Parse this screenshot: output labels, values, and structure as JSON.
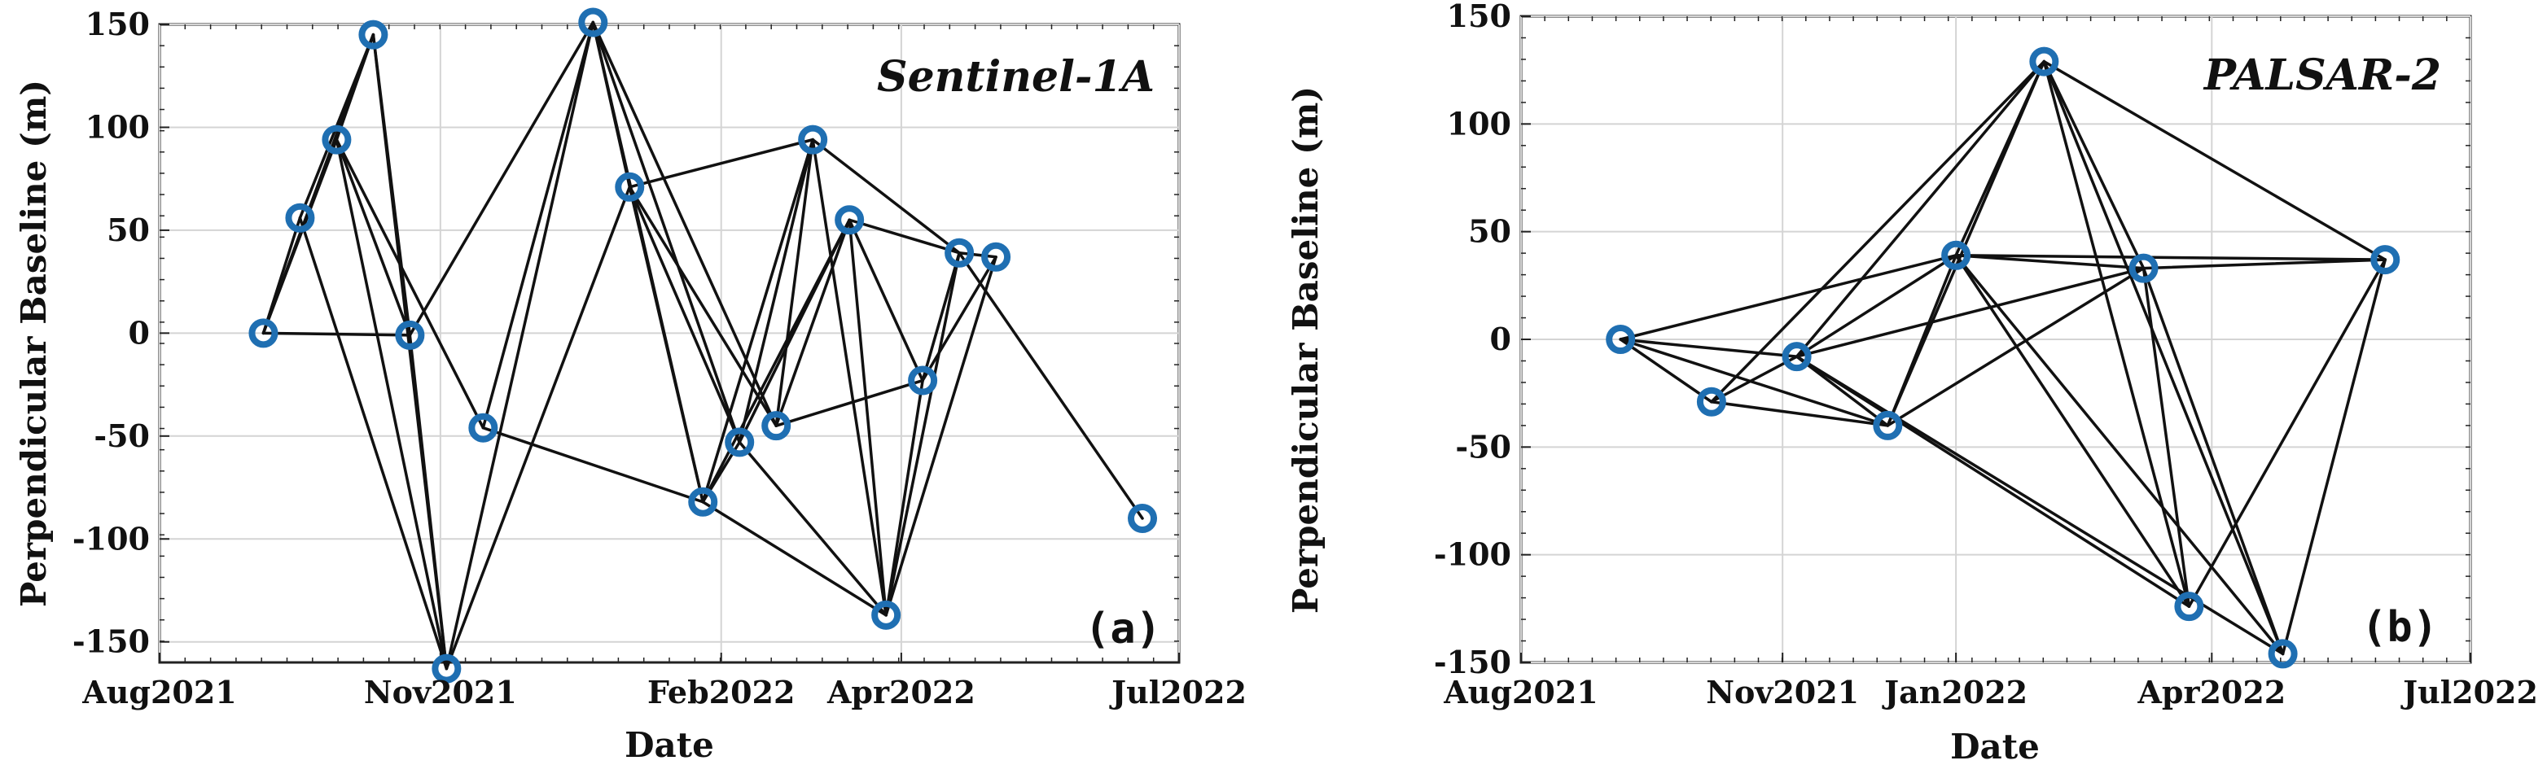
{
  "figure": {
    "colors": {
      "background": "#ffffff",
      "grid": "#d4d4d4",
      "axis": "#222222",
      "edge": "#111111",
      "marker": "#1f6fb2",
      "text": "#111111"
    }
  },
  "chart_data": [
    {
      "type": "scatter",
      "panel": "a",
      "subtype": "baseline network (nodes connected by interferometric pairs)",
      "title": "Sentinel-1A",
      "panel_label": "(a)",
      "xlabel": "Date",
      "ylabel": "Perpendicular Baseline (m)",
      "xlim": [
        "2021-08-01",
        "2022-07-01"
      ],
      "ylim": [
        -160,
        150
      ],
      "xticks": [
        {
          "date": "2021-08-01",
          "label": "Aug2021"
        },
        {
          "date": "2021-11-01",
          "label": "Nov2021"
        },
        {
          "date": "2022-02-01",
          "label": "Feb2022"
        },
        {
          "date": "2022-04-01",
          "label": "Apr2022"
        },
        {
          "date": "2022-07-01",
          "label": "Jul2022"
        }
      ],
      "yticks": [
        150,
        100,
        50,
        0,
        -50,
        -100,
        -150
      ],
      "grid": true,
      "nodes": [
        {
          "date": "2021-09-04",
          "baseline": 0
        },
        {
          "date": "2021-09-16",
          "baseline": 56
        },
        {
          "date": "2021-09-28",
          "baseline": 94
        },
        {
          "date": "2021-10-10",
          "baseline": 145
        },
        {
          "date": "2021-10-22",
          "baseline": -1
        },
        {
          "date": "2021-11-03",
          "baseline": -163
        },
        {
          "date": "2021-11-15",
          "baseline": -46
        },
        {
          "date": "2021-12-21",
          "baseline": 151
        },
        {
          "date": "2022-01-02",
          "baseline": 71
        },
        {
          "date": "2022-01-26",
          "baseline": -82
        },
        {
          "date": "2022-02-07",
          "baseline": -53
        },
        {
          "date": "2022-02-19",
          "baseline": -45
        },
        {
          "date": "2022-03-03",
          "baseline": 94
        },
        {
          "date": "2022-03-15",
          "baseline": 55
        },
        {
          "date": "2022-03-27",
          "baseline": -137
        },
        {
          "date": "2022-04-08",
          "baseline": -23
        },
        {
          "date": "2022-04-20",
          "baseline": 39
        },
        {
          "date": "2022-05-02",
          "baseline": 37
        },
        {
          "date": "2022-06-19",
          "baseline": -90
        }
      ],
      "pairs": [
        [
          0,
          1
        ],
        [
          0,
          2
        ],
        [
          0,
          3
        ],
        [
          0,
          4
        ],
        [
          1,
          3
        ],
        [
          1,
          5
        ],
        [
          2,
          3
        ],
        [
          2,
          5
        ],
        [
          2,
          6
        ],
        [
          2,
          4
        ],
        [
          3,
          4
        ],
        [
          3,
          5
        ],
        [
          4,
          7
        ],
        [
          4,
          5
        ],
        [
          5,
          7
        ],
        [
          5,
          8
        ],
        [
          6,
          7
        ],
        [
          6,
          9
        ],
        [
          7,
          8
        ],
        [
          7,
          9
        ],
        [
          7,
          10
        ],
        [
          7,
          11
        ],
        [
          8,
          12
        ],
        [
          8,
          9
        ],
        [
          8,
          10
        ],
        [
          8,
          11
        ],
        [
          9,
          12
        ],
        [
          9,
          13
        ],
        [
          9,
          10
        ],
        [
          9,
          14
        ],
        [
          10,
          12
        ],
        [
          10,
          13
        ],
        [
          10,
          14
        ],
        [
          11,
          12
        ],
        [
          11,
          13
        ],
        [
          11,
          15
        ],
        [
          12,
          14
        ],
        [
          12,
          16
        ],
        [
          13,
          14
        ],
        [
          13,
          15
        ],
        [
          13,
          16
        ],
        [
          14,
          16
        ],
        [
          14,
          17
        ],
        [
          14,
          15
        ],
        [
          15,
          16
        ],
        [
          15,
          17
        ],
        [
          16,
          17
        ],
        [
          16,
          18
        ]
      ]
    },
    {
      "type": "scatter",
      "panel": "b",
      "subtype": "baseline network (nodes connected by interferometric pairs)",
      "title": "PALSAR-2",
      "panel_label": "(b)",
      "xlabel": "Date",
      "ylabel": "Perpendicular Baseline (m)",
      "xlim": [
        "2021-08-01",
        "2022-07-01"
      ],
      "ylim": [
        -150,
        150
      ],
      "xticks": [
        {
          "date": "2021-08-01",
          "label": "Aug2021"
        },
        {
          "date": "2021-11-01",
          "label": "Nov2021"
        },
        {
          "date": "2022-01-01",
          "label": "Jan2022"
        },
        {
          "date": "2022-04-01",
          "label": "Apr2022"
        },
        {
          "date": "2022-07-01",
          "label": "Jul2022"
        }
      ],
      "yticks": [
        150,
        100,
        50,
        0,
        -50,
        -100,
        -150
      ],
      "grid": true,
      "nodes": [
        {
          "date": "2021-09-05",
          "baseline": 0
        },
        {
          "date": "2021-10-07",
          "baseline": -29
        },
        {
          "date": "2021-11-06",
          "baseline": -8
        },
        {
          "date": "2021-12-08",
          "baseline": -40
        },
        {
          "date": "2022-01-01",
          "baseline": 39
        },
        {
          "date": "2022-02-01",
          "baseline": 129
        },
        {
          "date": "2022-03-08",
          "baseline": 33
        },
        {
          "date": "2022-03-24",
          "baseline": -124
        },
        {
          "date": "2022-04-26",
          "baseline": -146
        },
        {
          "date": "2022-06-01",
          "baseline": 37
        }
      ],
      "pairs": [
        [
          0,
          1
        ],
        [
          0,
          2
        ],
        [
          0,
          3
        ],
        [
          0,
          4
        ],
        [
          1,
          2
        ],
        [
          1,
          3
        ],
        [
          1,
          5
        ],
        [
          2,
          3
        ],
        [
          2,
          4
        ],
        [
          2,
          5
        ],
        [
          2,
          6
        ],
        [
          2,
          7
        ],
        [
          2,
          8
        ],
        [
          3,
          4
        ],
        [
          3,
          5
        ],
        [
          3,
          6
        ],
        [
          4,
          5
        ],
        [
          4,
          6
        ],
        [
          4,
          7
        ],
        [
          4,
          8
        ],
        [
          4,
          9
        ],
        [
          5,
          6
        ],
        [
          5,
          7
        ],
        [
          5,
          8
        ],
        [
          5,
          9
        ],
        [
          6,
          7
        ],
        [
          6,
          8
        ],
        [
          6,
          9
        ],
        [
          7,
          9
        ],
        [
          8,
          9
        ]
      ]
    }
  ]
}
